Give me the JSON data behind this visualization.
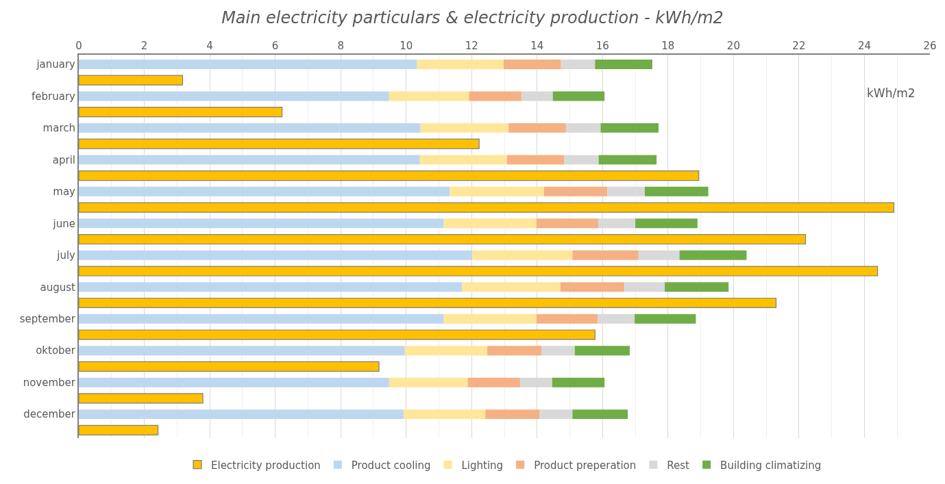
{
  "chart_data": {
    "type": "bar",
    "orientation": "horizontal",
    "stacked": true,
    "title": "Main electricity particulars & electricity production - kWh/m2",
    "xlabel": "kWh/m2",
    "categories": [
      "january",
      null,
      "february",
      null,
      "march",
      null,
      "april",
      null,
      "may",
      null,
      "june",
      null,
      "july",
      null,
      "august",
      null,
      "september",
      null,
      "oktober",
      null,
      "november",
      null,
      "december",
      null
    ],
    "series": [
      {
        "name": "Electricity production",
        "color": "#ffc000",
        "values": [
          null,
          3.17,
          null,
          6.21,
          null,
          12.23,
          null,
          18.94,
          null,
          24.9,
          null,
          22.2,
          null,
          24.4,
          null,
          21.3,
          null,
          15.77,
          null,
          9.17,
          null,
          3.79,
          null,
          2.42
        ]
      },
      {
        "name": "Product cooling",
        "color": "#bdd7ee",
        "values": [
          10.33,
          null,
          9.48,
          null,
          10.44,
          null,
          10.42,
          null,
          11.33,
          null,
          11.15,
          null,
          12.02,
          null,
          11.71,
          null,
          11.15,
          null,
          9.96,
          null,
          9.48,
          null,
          9.92,
          null
        ]
      },
      {
        "name": "Lighting",
        "color": "#ffe699",
        "values": [
          2.65,
          null,
          2.44,
          null,
          2.69,
          null,
          2.66,
          null,
          2.88,
          null,
          2.83,
          null,
          3.06,
          null,
          3.0,
          null,
          2.83,
          null,
          2.52,
          null,
          2.4,
          null,
          2.5,
          null
        ]
      },
      {
        "name": "Product preperation",
        "color": "#f4b183",
        "values": [
          1.75,
          null,
          1.6,
          null,
          1.75,
          null,
          1.75,
          null,
          1.94,
          null,
          1.9,
          null,
          2.02,
          null,
          1.96,
          null,
          1.87,
          null,
          1.65,
          null,
          1.6,
          null,
          1.66,
          null
        ]
      },
      {
        "name": "Rest",
        "color": "#d9d9d9",
        "values": [
          1.04,
          null,
          0.96,
          null,
          1.06,
          null,
          1.05,
          null,
          1.14,
          null,
          1.12,
          null,
          1.25,
          null,
          1.23,
          null,
          1.13,
          null,
          1.02,
          null,
          0.98,
          null,
          1.0,
          null
        ]
      },
      {
        "name": "Building climatizing",
        "color": "#70ad47",
        "values": [
          1.75,
          null,
          1.58,
          null,
          1.77,
          null,
          1.77,
          null,
          1.94,
          null,
          1.9,
          null,
          2.05,
          null,
          1.95,
          null,
          1.87,
          null,
          1.68,
          null,
          1.6,
          null,
          1.69,
          null
        ]
      }
    ],
    "xlim": [
      0,
      26
    ],
    "xticks": [
      0,
      2,
      4,
      6,
      8,
      10,
      12,
      14,
      16,
      18,
      20,
      22,
      24,
      26
    ],
    "grid": "x",
    "legend": "bottom"
  }
}
